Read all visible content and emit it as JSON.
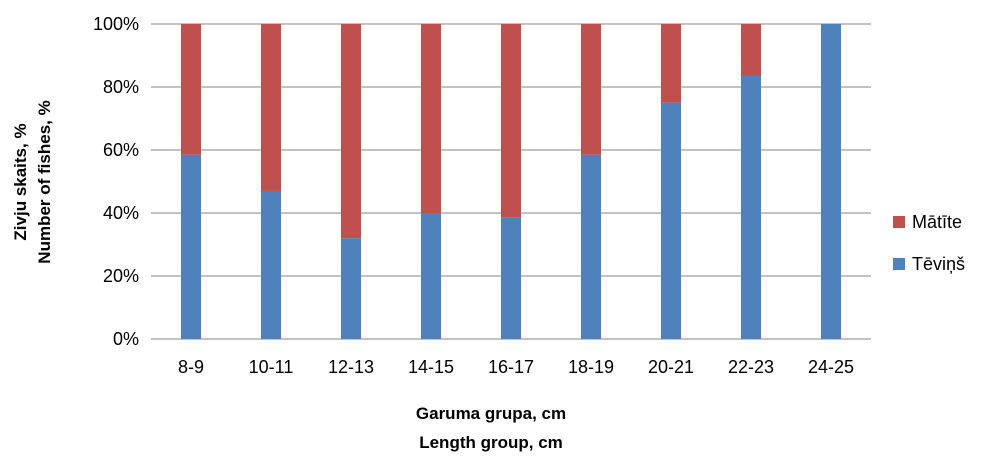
{
  "chart_data": {
    "type": "bar",
    "stacked": "percent",
    "categories": [
      "8-9",
      "10-11",
      "12-13",
      "14-15",
      "16-17",
      "18-19",
      "20-21",
      "22-23",
      "24-25"
    ],
    "series": [
      {
        "name": "Tēviņš",
        "color": "#4f81bd",
        "values": [
          58.5,
          47,
          32,
          40,
          38.5,
          58.5,
          75,
          83.5,
          100
        ]
      },
      {
        "name": "Mātīte",
        "color": "#c0504d",
        "values": [
          41.5,
          53,
          68,
          60,
          61.5,
          41.5,
          25,
          16.5,
          0
        ]
      }
    ],
    "ylim": [
      0,
      100
    ],
    "yticks": [
      "0%",
      "20%",
      "40%",
      "60%",
      "80%",
      "100%"
    ],
    "xlabel": [
      "Garuma grupa, cm",
      "Length group, cm"
    ],
    "ylabel": [
      "Zivju skaits, %",
      "Number of fishes, %"
    ],
    "legend": {
      "placement": "right",
      "order": [
        "Mātīte",
        "Tēviņš"
      ]
    },
    "grid": true
  }
}
